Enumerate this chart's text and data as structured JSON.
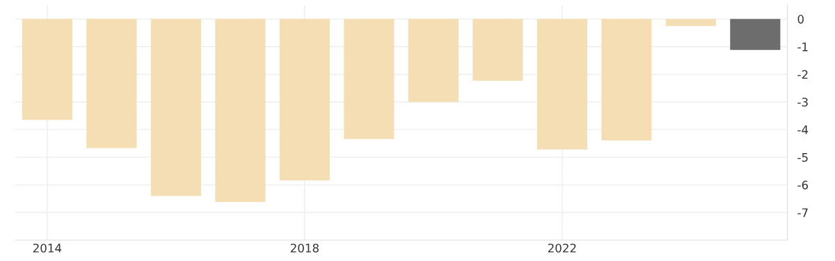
{
  "chart_data": {
    "type": "bar",
    "x": [
      2014,
      2015,
      2016,
      2017,
      2018,
      2019,
      2020,
      2021,
      2022,
      2023,
      2024,
      2025
    ],
    "values": [
      -3.65,
      -4.67,
      -6.4,
      -6.62,
      -5.84,
      -4.34,
      -3.0,
      -2.23,
      -4.72,
      -4.39,
      -0.25,
      -1.12
    ],
    "colors": [
      "#f5deb3",
      "#f5deb3",
      "#f5deb3",
      "#f5deb3",
      "#f5deb3",
      "#f5deb3",
      "#f5deb3",
      "#f5deb3",
      "#f5deb3",
      "#f5deb3",
      "#f5deb3",
      "#6d6d6d"
    ],
    "xlim": [
      2013.5,
      2025.5
    ],
    "xticks": [
      2014,
      2018,
      2022
    ],
    "ylim": [
      -8,
      0.5
    ],
    "yticks": [
      0,
      -1,
      -2,
      -3,
      -4,
      -5,
      -6,
      -7
    ],
    "grid": true,
    "legend": false
  }
}
